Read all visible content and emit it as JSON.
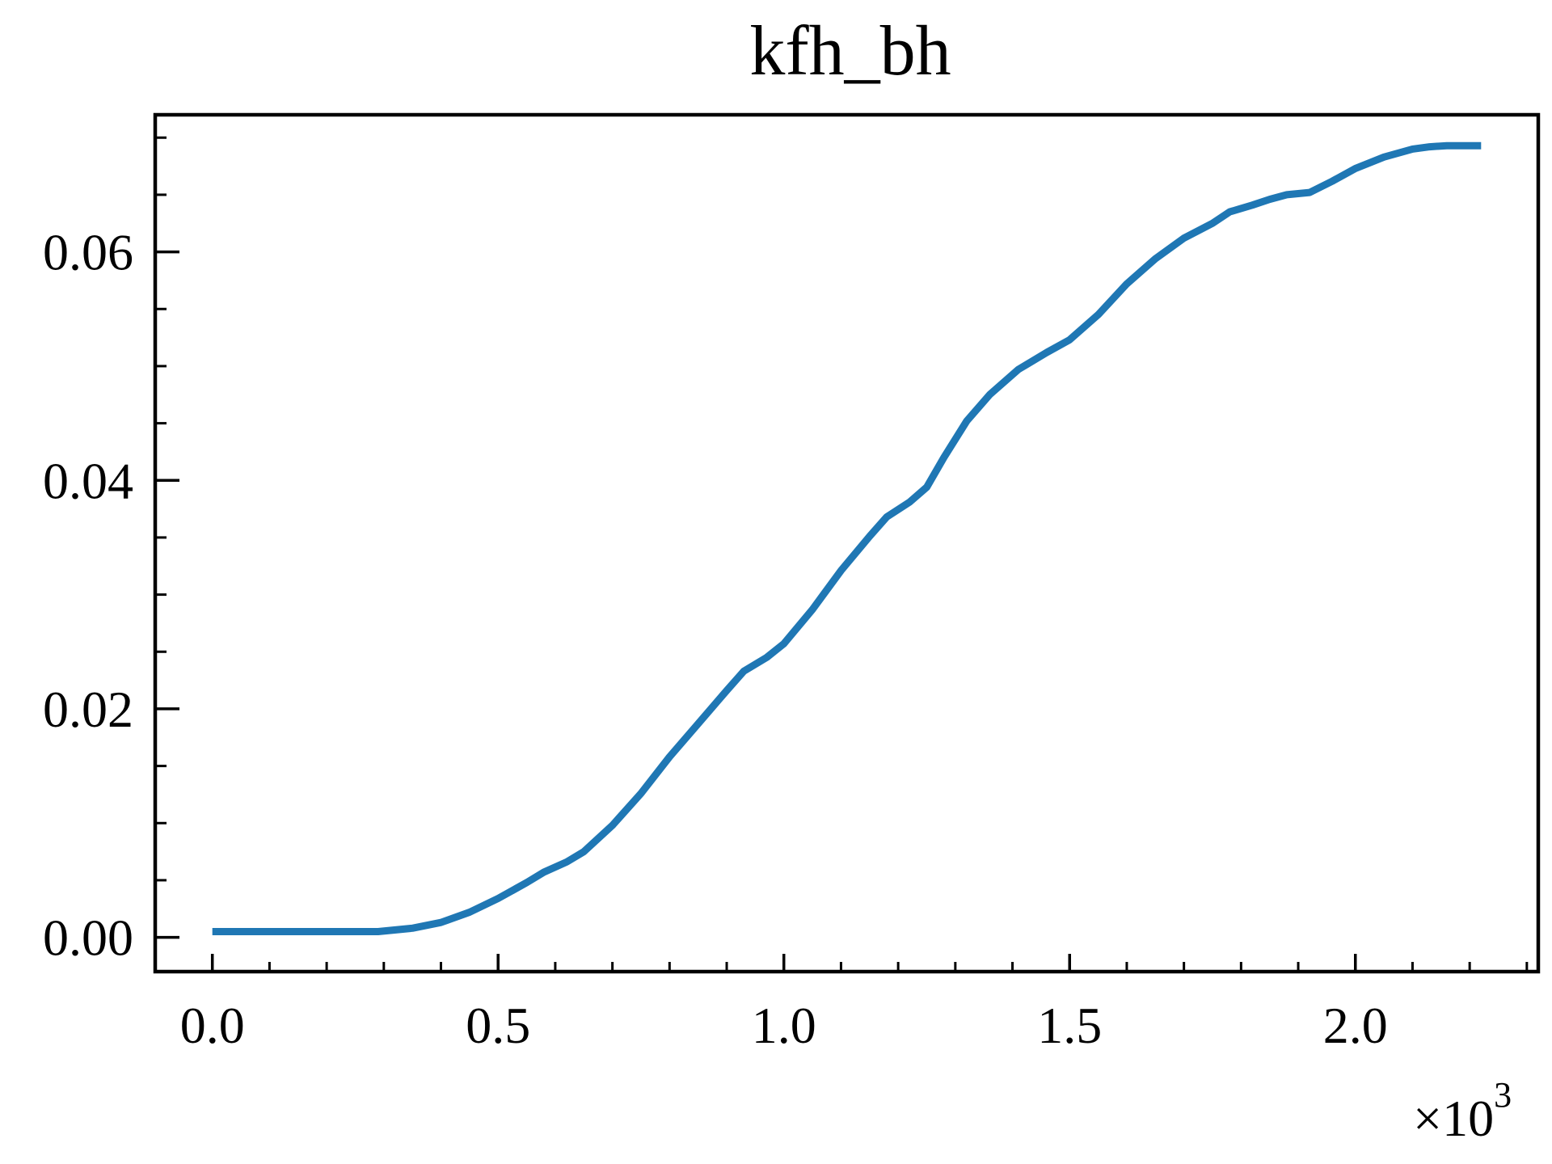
{
  "chart_data": {
    "type": "line",
    "title": "kfh_bh",
    "xlabel": "",
    "ylabel": "",
    "x_multiplier": "×10",
    "x_multiplier_exponent": "3",
    "xlim": [
      -0.1,
      2.32
    ],
    "ylim": [
      -0.003,
      0.072
    ],
    "x_ticks": [
      0.0,
      0.5,
      1.0,
      1.5,
      2.0
    ],
    "x_tick_labels": [
      "0.0",
      "0.5",
      "1.0",
      "1.5",
      "2.0"
    ],
    "x_minor_step": 0.1,
    "y_ticks": [
      0.0,
      0.02,
      0.04,
      0.06
    ],
    "y_tick_labels": [
      "0.00",
      "0.02",
      "0.04",
      "0.06"
    ],
    "y_minor_step": 0.005,
    "grid": false,
    "legend": "none",
    "series": [
      {
        "color": "#1f77b4",
        "x": [
          0.0,
          0.1,
          0.2,
          0.29,
          0.35,
          0.4,
          0.45,
          0.5,
          0.55,
          0.58,
          0.62,
          0.65,
          0.7,
          0.75,
          0.8,
          0.85,
          0.9,
          0.93,
          0.97,
          1.0,
          1.05,
          1.1,
          1.15,
          1.18,
          1.22,
          1.25,
          1.28,
          1.32,
          1.36,
          1.41,
          1.46,
          1.5,
          1.55,
          1.6,
          1.65,
          1.7,
          1.75,
          1.78,
          1.82,
          1.85,
          1.88,
          1.92,
          1.96,
          2.0,
          2.05,
          2.1,
          2.13,
          2.16,
          2.22
        ],
        "y": [
          0.0005,
          0.0005,
          0.0005,
          0.0005,
          0.0008,
          0.0013,
          0.0022,
          0.0034,
          0.0048,
          0.0057,
          0.0066,
          0.0075,
          0.0098,
          0.0126,
          0.0158,
          0.0187,
          0.0216,
          0.0233,
          0.0245,
          0.0257,
          0.0287,
          0.0321,
          0.0351,
          0.0368,
          0.0381,
          0.0394,
          0.042,
          0.0452,
          0.0475,
          0.0497,
          0.0512,
          0.0523,
          0.0545,
          0.0572,
          0.0594,
          0.0612,
          0.0625,
          0.0635,
          0.0641,
          0.0646,
          0.065,
          0.0652,
          0.0662,
          0.0673,
          0.0683,
          0.069,
          0.0692,
          0.0693,
          0.0693
        ]
      }
    ]
  }
}
